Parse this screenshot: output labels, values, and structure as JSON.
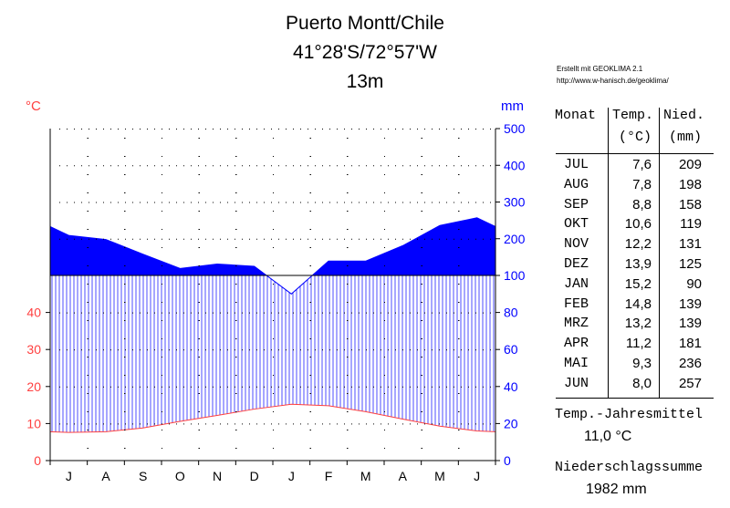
{
  "header": {
    "station": "Puerto Montt/Chile",
    "coords": "41°28'S/72°57'W",
    "elevation": "13m",
    "credit1": "Erstellt mit GEOKLIMA 2.1",
    "credit2": "http://www.w-hanisch.de/geoklima/"
  },
  "table": {
    "col_month": "Monat",
    "col_temp": "Temp.",
    "col_temp_unit": "(°C)",
    "col_precip": "Nied.",
    "col_precip_unit": "(mm)",
    "rows": [
      {
        "month": "JUL",
        "temp": "7,6",
        "precip": "209"
      },
      {
        "month": "AUG",
        "temp": "7,8",
        "precip": "198"
      },
      {
        "month": "SEP",
        "temp": "8,8",
        "precip": "158"
      },
      {
        "month": "OKT",
        "temp": "10,6",
        "precip": "119"
      },
      {
        "month": "NOV",
        "temp": "12,2",
        "precip": "131"
      },
      {
        "month": "DEZ",
        "temp": "13,9",
        "precip": "125"
      },
      {
        "month": "JAN",
        "temp": "15,2",
        "precip": "90"
      },
      {
        "month": "FEB",
        "temp": "14,8",
        "precip": "139"
      },
      {
        "month": "MRZ",
        "temp": "13,2",
        "precip": "139"
      },
      {
        "month": "APR",
        "temp": "11,2",
        "precip": "181"
      },
      {
        "month": "MAI",
        "temp": "9,3",
        "precip": "236"
      },
      {
        "month": "JUN",
        "temp": "8,0",
        "precip": "257"
      }
    ]
  },
  "summary": {
    "temp_label": "Temp.-Jahresmittel",
    "temp_value": "11,0 °C",
    "precip_label": "Niederschlagssumme",
    "precip_value": "1982 mm"
  },
  "chart_data": {
    "type": "line",
    "categories": [
      "J",
      "A",
      "S",
      "O",
      "N",
      "D",
      "J",
      "F",
      "M",
      "A",
      "M",
      "J"
    ],
    "left_axis": {
      "label": "°C",
      "ticks": [
        0,
        10,
        20,
        30,
        40
      ],
      "color": "#ff4040"
    },
    "right_axis": {
      "label": "mm",
      "ticks": [
        0,
        20,
        40,
        60,
        80,
        100,
        200,
        300,
        400,
        500
      ],
      "tick_labels": [
        "0",
        "20",
        "40",
        "60",
        "80",
        "100",
        "200",
        "300",
        "400",
        "500"
      ],
      "color": "#0000ff"
    },
    "series": [
      {
        "key": "temperature",
        "values": [
          7.6,
          7.8,
          8.8,
          10.6,
          12.2,
          13.9,
          15.2,
          14.8,
          13.2,
          11.2,
          9.3,
          8.0
        ],
        "color": "#ff4040"
      },
      {
        "key": "precipitation",
        "values": [
          209,
          198,
          158,
          119,
          131,
          125,
          90,
          139,
          139,
          181,
          236,
          257
        ],
        "color": "#0000ff"
      }
    ],
    "grid": true
  }
}
